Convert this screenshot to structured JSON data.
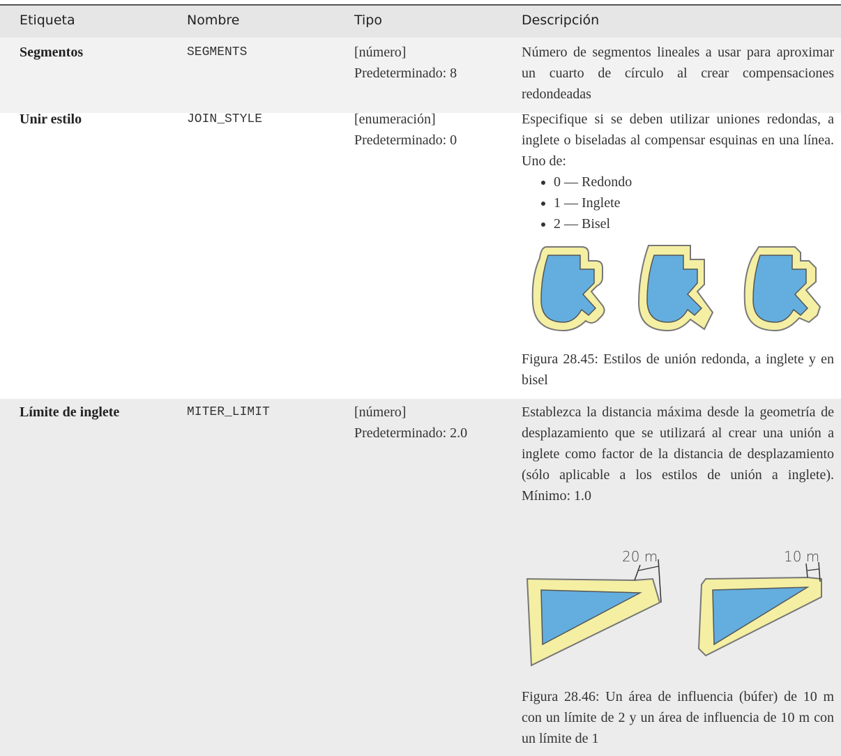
{
  "table": {
    "header": [
      "Etiqueta",
      "Nombre",
      "Tipo",
      "Descripción"
    ],
    "rows": [
      {
        "label": "Segmentos",
        "name": "SEGMENTS",
        "type": [
          "[número]",
          "Predeterminado: 8"
        ],
        "description": "Número de segmentos lineales a usar para aproximar un cuarto de círculo al crear compensaciones redondeadas"
      },
      {
        "label": "Unir estilo",
        "name": "JOIN_STYLE",
        "type": [
          "[enumeración]",
          "Predeterminado: 0"
        ],
        "description": "Especifique si se deben utilizar uniones redondas, a inglete o biseladas al compensar esquinas en una línea. Uno de:",
        "options": [
          "0 — Redondo",
          "1 — Inglete",
          "2 — Bisel"
        ],
        "figure_caption": "Figura 28.45: Estilos de unión redonda, a inglete y en bisel"
      },
      {
        "label": "Límite de inglete",
        "name": "MITER_LIMIT",
        "type": [
          "[número]",
          "Predeterminado: 2.0"
        ],
        "description": "Establezca la distancia máxima desde la geometría de desplazamiento que se utilizará al crear una unión a inglete como factor de la distancia de desplazamiento (sólo aplicable a los estilos de unión a inglete). Mínimo: 1.0",
        "figure_labels": [
          "20 m",
          "10 m"
        ],
        "figure_caption": "Figura 28.46: Un área de influencia (búfer) de 10 m con un límite de 2 y un área de influencia de 10 m con un límite de 1"
      }
    ]
  }
}
